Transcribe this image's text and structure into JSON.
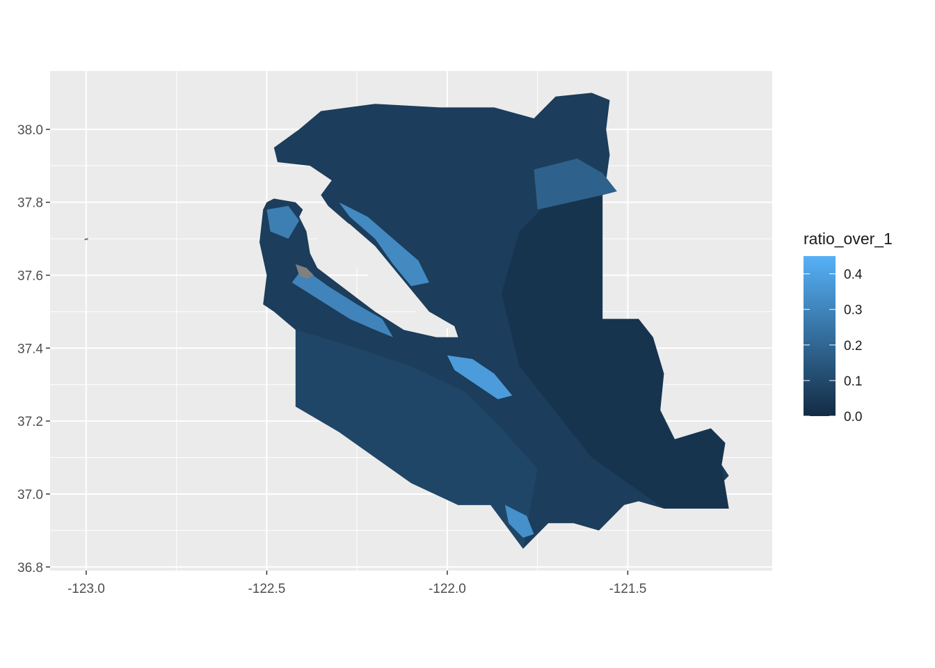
{
  "chart_data": {
    "type": "choropleth-map",
    "x_axis": {
      "ticks": [
        -123.0,
        -122.5,
        -122.0,
        -121.5
      ],
      "tick_labels": [
        "-123.0",
        "-122.5",
        "-122.0",
        "-121.5"
      ],
      "range": [
        -123.1,
        -121.1
      ]
    },
    "y_axis": {
      "ticks": [
        36.8,
        37.0,
        37.2,
        37.4,
        37.6,
        37.8,
        38.0
      ],
      "tick_labels": [
        "36.8",
        "37.0",
        "37.2",
        "37.4",
        "37.6",
        "37.8",
        "38.0"
      ],
      "range": [
        36.79,
        38.16
      ]
    },
    "grid": true,
    "panel_background": "#ebebeb",
    "legend": {
      "title": "ratio_over_1",
      "placement": "right",
      "breaks": [
        0.0,
        0.1,
        0.2,
        0.3,
        0.4
      ],
      "break_labels": [
        "0.0",
        "0.1",
        "0.2",
        "0.3",
        "0.4"
      ],
      "range": [
        0.0,
        0.45
      ],
      "low_color": "#132b43",
      "high_color": "#56b1f7"
    },
    "na_color": "#808080",
    "regions": [
      {
        "name": "bay-area-tracts",
        "value": 0.06,
        "outline": [
          [
            -122.5,
            37.8
          ],
          [
            -122.48,
            37.81
          ],
          [
            -122.42,
            37.8
          ],
          [
            -122.4,
            37.78
          ],
          [
            -122.41,
            37.76
          ],
          [
            -122.39,
            37.72
          ],
          [
            -122.38,
            37.66
          ],
          [
            -122.36,
            37.62
          ],
          [
            -122.28,
            37.56
          ],
          [
            -122.2,
            37.5
          ],
          [
            -122.12,
            37.45
          ],
          [
            -122.03,
            37.43
          ],
          [
            -121.97,
            37.43
          ],
          [
            -121.98,
            37.46
          ],
          [
            -122.05,
            37.48
          ],
          [
            -122.1,
            37.53
          ],
          [
            -122.15,
            37.6
          ],
          [
            -122.2,
            37.66
          ],
          [
            -122.26,
            37.73
          ],
          [
            -122.33,
            37.79
          ],
          [
            -122.35,
            37.82
          ],
          [
            -122.32,
            37.86
          ],
          [
            -122.38,
            37.9
          ],
          [
            -122.47,
            37.91
          ],
          [
            -122.48,
            37.95
          ],
          [
            -122.41,
            38.0
          ],
          [
            -122.35,
            38.05
          ],
          [
            -122.2,
            38.07
          ],
          [
            -122.02,
            38.06
          ],
          [
            -121.87,
            38.06
          ],
          [
            -121.76,
            38.03
          ],
          [
            -121.7,
            38.09
          ],
          [
            -121.6,
            38.1
          ],
          [
            -121.55,
            38.08
          ],
          [
            -121.56,
            38.0
          ],
          [
            -121.55,
            37.93
          ],
          [
            -121.56,
            37.86
          ],
          [
            -121.53,
            37.83
          ],
          [
            -121.57,
            37.82
          ],
          [
            -121.57,
            37.48
          ],
          [
            -121.47,
            37.48
          ],
          [
            -121.43,
            37.43
          ],
          [
            -121.4,
            37.33
          ],
          [
            -121.41,
            37.23
          ],
          [
            -121.37,
            37.15
          ],
          [
            -121.27,
            37.18
          ],
          [
            -121.23,
            37.14
          ],
          [
            -121.24,
            37.08
          ],
          [
            -121.22,
            37.05
          ],
          [
            -121.24,
            37.03
          ],
          [
            -121.22,
            36.96
          ],
          [
            -121.4,
            36.96
          ],
          [
            -121.47,
            36.98
          ],
          [
            -121.51,
            36.97
          ],
          [
            -121.58,
            36.9
          ],
          [
            -121.65,
            36.92
          ],
          [
            -121.72,
            36.92
          ],
          [
            -121.79,
            36.85
          ],
          [
            -121.88,
            36.97
          ],
          [
            -121.97,
            36.97
          ],
          [
            -122.1,
            37.03
          ],
          [
            -122.3,
            37.17
          ],
          [
            -122.42,
            37.24
          ],
          [
            -122.42,
            37.45
          ],
          [
            -122.48,
            37.5
          ],
          [
            -122.51,
            37.52
          ],
          [
            -122.5,
            37.6
          ],
          [
            -122.52,
            37.69
          ],
          [
            -122.51,
            37.78
          ]
        ]
      },
      {
        "name": "central-valley-tract",
        "value": 0.03,
        "outline": [
          [
            -121.57,
            37.82
          ],
          [
            -121.57,
            37.48
          ],
          [
            -121.47,
            37.48
          ],
          [
            -121.43,
            37.43
          ],
          [
            -121.4,
            37.33
          ],
          [
            -121.41,
            37.23
          ],
          [
            -121.37,
            37.15
          ],
          [
            -121.27,
            37.18
          ],
          [
            -121.23,
            37.14
          ],
          [
            -121.24,
            37.08
          ],
          [
            -121.22,
            36.96
          ],
          [
            -121.4,
            36.96
          ],
          [
            -121.6,
            37.1
          ],
          [
            -121.8,
            37.35
          ],
          [
            -121.85,
            37.55
          ],
          [
            -121.8,
            37.72
          ],
          [
            -121.72,
            37.8
          ]
        ]
      },
      {
        "name": "lower-left-tract",
        "value": 0.09,
        "outline": [
          [
            -122.42,
            37.45
          ],
          [
            -122.35,
            37.43
          ],
          [
            -122.25,
            37.4
          ],
          [
            -122.1,
            37.35
          ],
          [
            -121.95,
            37.28
          ],
          [
            -121.85,
            37.18
          ],
          [
            -121.75,
            37.07
          ],
          [
            -121.79,
            36.85
          ],
          [
            -121.88,
            36.97
          ],
          [
            -121.97,
            36.97
          ],
          [
            -122.1,
            37.03
          ],
          [
            -122.3,
            37.17
          ],
          [
            -122.42,
            37.24
          ]
        ]
      },
      {
        "name": "delta-tract",
        "value": 0.18,
        "outline": [
          [
            -121.76,
            37.89
          ],
          [
            -121.64,
            37.92
          ],
          [
            -121.57,
            37.88
          ],
          [
            -121.53,
            37.83
          ],
          [
            -121.57,
            37.82
          ],
          [
            -121.75,
            37.78
          ]
        ]
      },
      {
        "name": "peninsula-hotspot",
        "value": 0.3,
        "outline": [
          [
            -122.43,
            37.58
          ],
          [
            -122.35,
            37.53
          ],
          [
            -122.27,
            37.48
          ],
          [
            -122.2,
            37.45
          ],
          [
            -122.15,
            37.43
          ],
          [
            -122.18,
            37.48
          ],
          [
            -122.25,
            37.52
          ],
          [
            -122.33,
            37.57
          ],
          [
            -122.4,
            37.62
          ]
        ]
      },
      {
        "name": "east-bay-hotspot",
        "value": 0.32,
        "outline": [
          [
            -122.3,
            37.8
          ],
          [
            -122.22,
            37.76
          ],
          [
            -122.15,
            37.7
          ],
          [
            -122.08,
            37.64
          ],
          [
            -122.05,
            37.58
          ],
          [
            -122.1,
            37.57
          ],
          [
            -122.15,
            37.63
          ],
          [
            -122.2,
            37.7
          ],
          [
            -122.27,
            37.76
          ]
        ]
      },
      {
        "name": "san-jose-hotspot",
        "value": 0.38,
        "outline": [
          [
            -122.0,
            37.38
          ],
          [
            -121.93,
            37.37
          ],
          [
            -121.87,
            37.33
          ],
          [
            -121.82,
            37.27
          ],
          [
            -121.86,
            37.26
          ],
          [
            -121.92,
            37.3
          ],
          [
            -121.98,
            37.34
          ]
        ]
      },
      {
        "name": "sf-hotspot",
        "value": 0.28,
        "outline": [
          [
            -122.5,
            37.78
          ],
          [
            -122.44,
            37.79
          ],
          [
            -122.41,
            37.75
          ],
          [
            -122.44,
            37.7
          ],
          [
            -122.49,
            37.72
          ]
        ]
      },
      {
        "name": "santa-cruz-hotspot",
        "value": 0.34,
        "outline": [
          [
            -121.84,
            36.97
          ],
          [
            -121.78,
            36.94
          ],
          [
            -121.76,
            36.89
          ],
          [
            -121.79,
            36.88
          ],
          [
            -121.83,
            36.92
          ]
        ]
      },
      {
        "name": "na-tract",
        "value": null,
        "outline": [
          [
            -122.42,
            37.63
          ],
          [
            -122.39,
            37.62
          ],
          [
            -122.37,
            37.6
          ],
          [
            -122.39,
            37.59
          ],
          [
            -122.41,
            37.6
          ]
        ]
      },
      {
        "name": "na-islet",
        "value": null,
        "outline": [
          [
            -123.005,
            37.7
          ],
          [
            -122.995,
            37.702
          ],
          [
            -122.995,
            37.697
          ],
          [
            -123.004,
            37.696
          ]
        ]
      }
    ],
    "bay": [
      [
        -122.36,
        37.7
      ],
      [
        -122.3,
        37.66
      ],
      [
        -122.22,
        37.6
      ],
      [
        -122.13,
        37.53
      ],
      [
        -122.06,
        37.48
      ],
      [
        -121.99,
        37.45
      ],
      [
        -121.98,
        37.46
      ],
      [
        -122.05,
        37.5
      ],
      [
        -122.1,
        37.56
      ],
      [
        -122.15,
        37.62
      ],
      [
        -122.2,
        37.68
      ],
      [
        -122.27,
        37.74
      ],
      [
        -122.33,
        37.77
      ],
      [
        -122.36,
        37.75
      ]
    ]
  }
}
